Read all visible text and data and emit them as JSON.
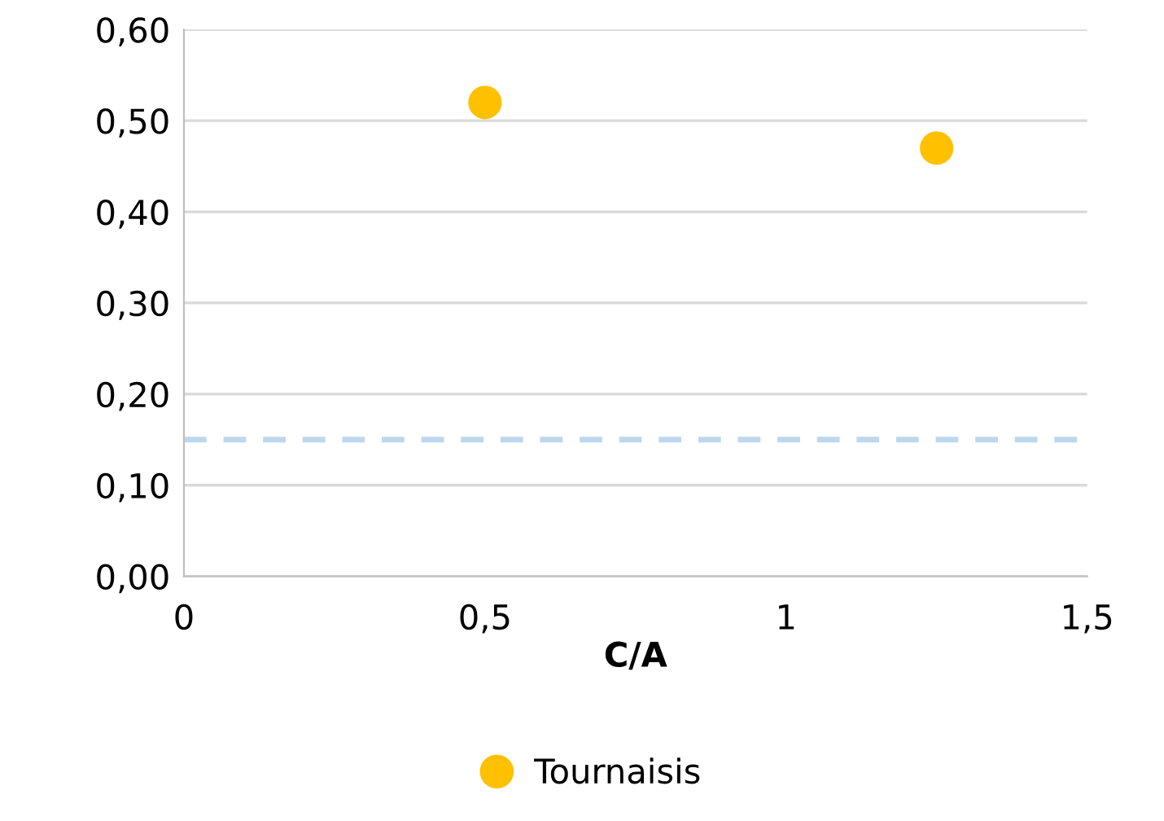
{
  "chart_data": {
    "type": "scatter",
    "xlabel": "C/A",
    "x": [
      0.5,
      1.25
    ],
    "series": [
      {
        "name": "Tournaisis",
        "color": "#ffc000",
        "values": [
          0.52,
          0.47
        ]
      }
    ],
    "xlim": [
      0,
      1.5
    ],
    "xticks": [
      0,
      {
        "value": 0.5,
        "label": "0,5"
      },
      1,
      {
        "value": 1.5,
        "label": "1,5"
      }
    ],
    "ylim": [
      0,
      0.6
    ],
    "yticks": [
      {
        "value": 0,
        "label": "0,00"
      },
      {
        "value": 0.1,
        "label": "0,10"
      },
      {
        "value": 0.2,
        "label": "0,20"
      },
      {
        "value": 0.3,
        "label": "0,30"
      },
      {
        "value": 0.4,
        "label": "0,40"
      },
      {
        "value": 0.5,
        "label": "0,50"
      },
      {
        "value": 0.6,
        "label": "0,60"
      }
    ],
    "ref_lines": [
      {
        "axis": "y",
        "value": 0.15,
        "color": "#bdd7ee",
        "line_style": "dashed"
      }
    ],
    "grid": "y",
    "legend": "bottom",
    "marker": "circle"
  }
}
